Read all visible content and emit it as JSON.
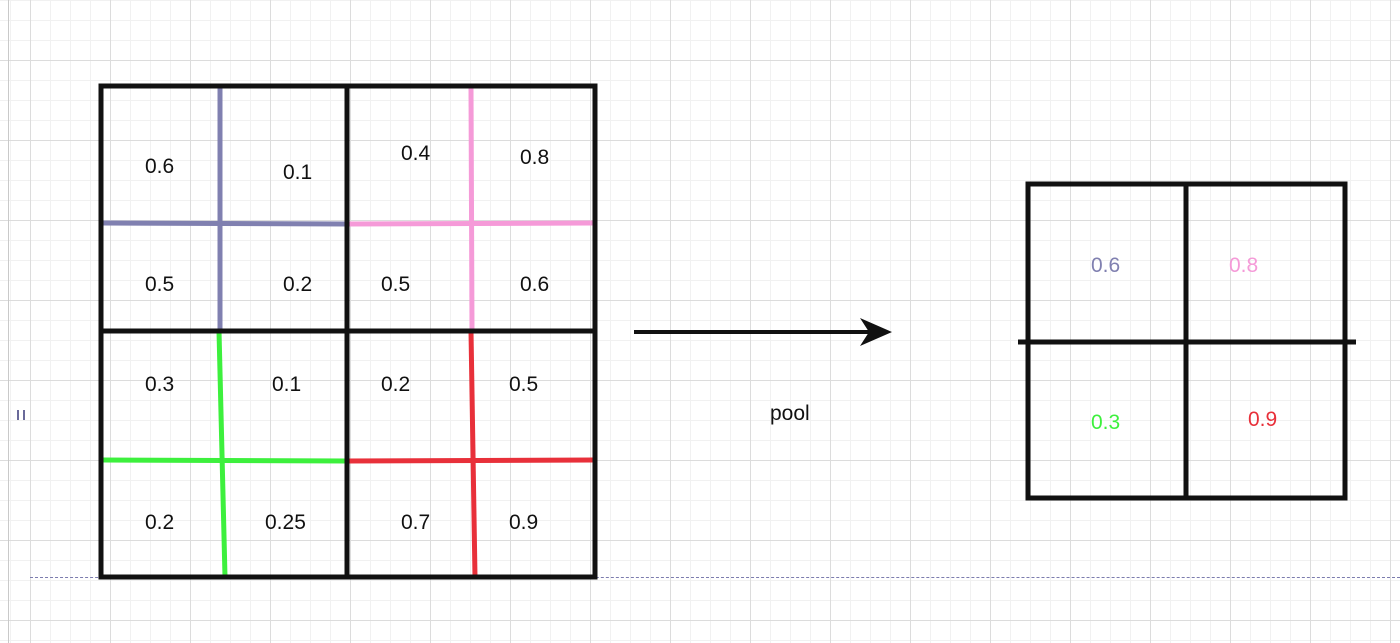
{
  "input_grid": {
    "rows": [
      [
        "0.6",
        "0.1",
        "0.4",
        "0.8"
      ],
      [
        "0.5",
        "0.2",
        "0.5",
        "0.6"
      ],
      [
        "0.3",
        "0.1",
        "0.2",
        "0.5"
      ],
      [
        "0.2",
        "0.25",
        "0.7",
        "0.9"
      ]
    ]
  },
  "arrow": {
    "label": "pool"
  },
  "output_grid": {
    "rows": [
      [
        "0.6",
        "0.8"
      ],
      [
        "0.3",
        "0.9"
      ]
    ]
  },
  "colors": {
    "top_left_quadrant": "#8080b0",
    "top_right_quadrant": "#f59ad8",
    "bottom_left_quadrant": "#3df03d",
    "bottom_right_quadrant": "#e8303a",
    "grid_line": "#111111"
  }
}
